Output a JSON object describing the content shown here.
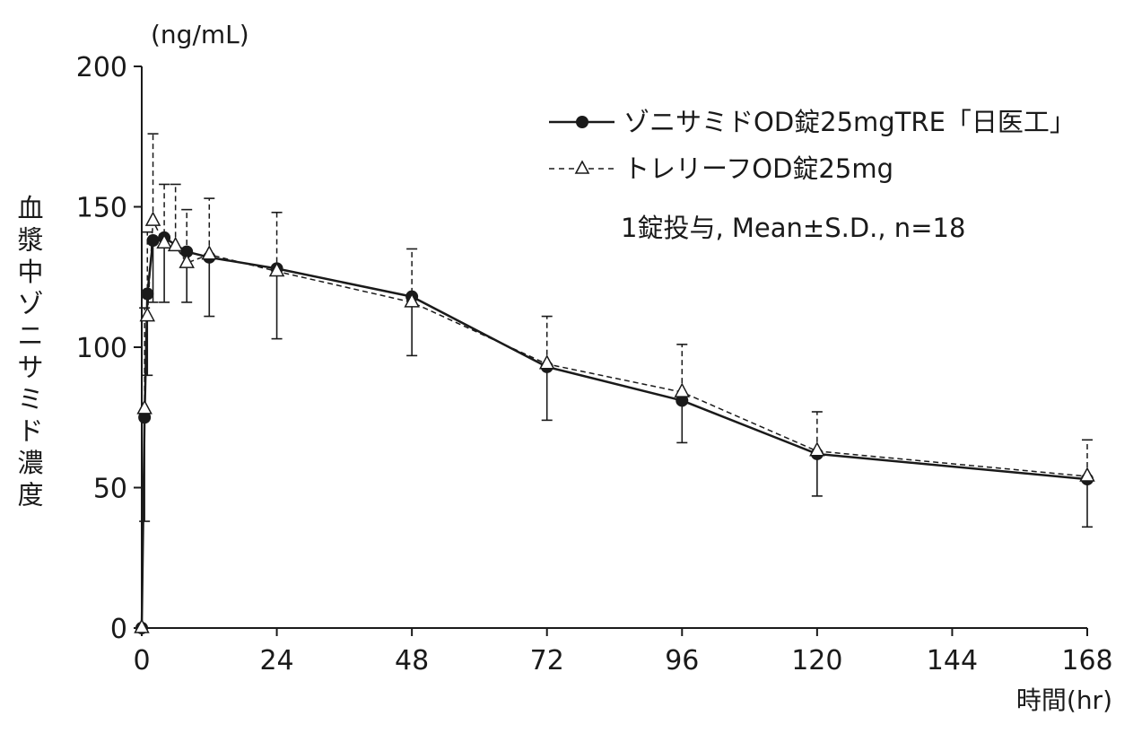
{
  "chart_data": {
    "type": "line",
    "unit_label": "(ng/mL)",
    "ylabel": "血漿中ゾニサミド濃度",
    "xlabel": "時間(hr)",
    "xlim": [
      0,
      168
    ],
    "ylim": [
      0,
      200
    ],
    "x_ticks": [
      0,
      24,
      48,
      72,
      96,
      120,
      144,
      168
    ],
    "x_tick_labels": [
      "0",
      "24",
      "48",
      "72",
      "96",
      "120",
      "144",
      "168"
    ],
    "y_ticks": [
      0,
      50,
      100,
      150,
      200
    ],
    "y_tick_labels": [
      "0",
      "50",
      "100",
      "150",
      "200"
    ],
    "annotation": "1錠投与, Mean±S.D., n=18",
    "series": [
      {
        "name": "ゾニサミドOD錠25mgTRE「日医工」",
        "marker": "filled-circle",
        "line_style": "solid",
        "x": [
          0,
          0.5,
          1,
          2,
          4,
          8,
          12,
          24,
          48,
          72,
          96,
          120,
          168
        ],
        "y": [
          0,
          75,
          119,
          138,
          139,
          134,
          132,
          128,
          118,
          93,
          81,
          62,
          53
        ],
        "err": [
          0,
          37,
          29,
          22,
          23,
          18,
          21,
          25,
          21,
          19,
          15,
          15,
          17
        ]
      },
      {
        "name": "トレリーフOD錠25mg",
        "marker": "open-triangle",
        "line_style": "dashed",
        "x": [
          0,
          0.5,
          1,
          2,
          4,
          6,
          8,
          12,
          24,
          48,
          72,
          96,
          120,
          168
        ],
        "y": [
          0,
          78,
          111,
          145,
          137,
          136,
          130,
          133,
          127,
          116,
          94,
          84,
          63,
          54
        ],
        "err": [
          0,
          36,
          30,
          31,
          21,
          22,
          19,
          20,
          21,
          19,
          17,
          17,
          14,
          13
        ]
      }
    ]
  }
}
